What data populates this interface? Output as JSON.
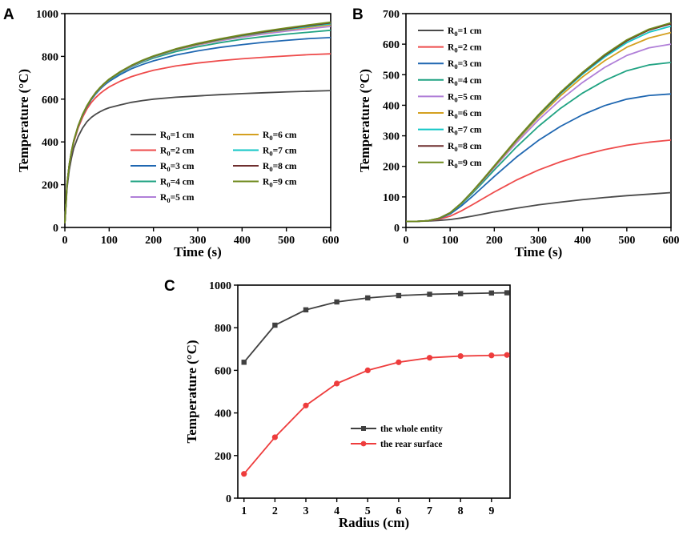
{
  "colors": {
    "R1": "#4a4a4a",
    "R2": "#ee4b4b",
    "R3": "#1f67b1",
    "R4": "#21a383",
    "R5": "#b07fd8",
    "R6": "#d4a020",
    "R7": "#12c6c6",
    "R8": "#6e2e2e",
    "R9": "#6f8a1d",
    "whole": "#404040",
    "rear": "#ee3c3c"
  },
  "chart_data": [
    {
      "panel": "A",
      "type": "line",
      "xlabel": "Time (s)",
      "ylabel": "Temperature (°C)",
      "xlim": [
        0,
        600
      ],
      "ylim": [
        0,
        1000
      ],
      "xticks": [
        0,
        100,
        200,
        300,
        400,
        500,
        600
      ],
      "yticks": [
        0,
        200,
        400,
        600,
        800,
        1000
      ],
      "legend": {
        "placement": "center-right",
        "columns": 2
      },
      "x": [
        0,
        5,
        10,
        15,
        20,
        30,
        40,
        50,
        60,
        70,
        80,
        90,
        100,
        125,
        150,
        175,
        200,
        250,
        300,
        350,
        400,
        450,
        500,
        550,
        600
      ],
      "series": [
        {
          "name": "R0=1 cm",
          "sub_label": "0",
          "prefix": "R",
          "suffix": "=1 cm",
          "color_key": "R1",
          "values": [
            20,
            185,
            270,
            325,
            370,
            425,
            465,
            495,
            515,
            530,
            542,
            552,
            560,
            573,
            585,
            593,
            600,
            609,
            615,
            621,
            626,
            630,
            634,
            637,
            640
          ]
        },
        {
          "name": "R0=2 cm",
          "sub_label": "0",
          "prefix": "R",
          "suffix": "=2 cm",
          "color_key": "R2",
          "values": [
            20,
            200,
            290,
            350,
            398,
            465,
            515,
            555,
            585,
            608,
            627,
            643,
            657,
            684,
            705,
            721,
            735,
            755,
            769,
            780,
            789,
            796,
            802,
            808,
            812
          ]
        },
        {
          "name": "R0=3 cm",
          "sub_label": "0",
          "prefix": "R",
          "suffix": "=3 cm",
          "color_key": "R3",
          "values": [
            20,
            202,
            293,
            354,
            403,
            472,
            524,
            565,
            598,
            625,
            648,
            667,
            683,
            715,
            742,
            762,
            779,
            806,
            826,
            842,
            855,
            866,
            875,
            883,
            888
          ]
        },
        {
          "name": "R0=4 cm",
          "sub_label": "0",
          "prefix": "R",
          "suffix": "=4 cm",
          "color_key": "R4",
          "values": [
            20,
            203,
            294,
            355,
            404,
            473,
            526,
            567,
            601,
            629,
            652,
            672,
            689,
            723,
            751,
            773,
            792,
            822,
            845,
            864,
            880,
            893,
            904,
            913,
            922
          ]
        },
        {
          "name": "R0=5 cm",
          "sub_label": "0",
          "prefix": "R",
          "suffix": "=5 cm",
          "color_key": "R5",
          "values": [
            20,
            203,
            294,
            356,
            405,
            474,
            527,
            568,
            602,
            630,
            653,
            673,
            691,
            726,
            754,
            777,
            797,
            829,
            853,
            873,
            890,
            905,
            918,
            929,
            940
          ]
        },
        {
          "name": "R0=6 cm",
          "sub_label": "0",
          "prefix": "R",
          "suffix": "=6 cm",
          "color_key": "R6",
          "values": [
            20,
            203,
            295,
            356,
            405,
            474,
            527,
            569,
            603,
            631,
            654,
            674,
            692,
            727,
            756,
            779,
            799,
            831,
            856,
            877,
            895,
            911,
            924,
            936,
            948
          ]
        },
        {
          "name": "R0=7 cm",
          "sub_label": "0",
          "prefix": "R",
          "suffix": "=7 cm",
          "color_key": "R7",
          "values": [
            20,
            203,
            295,
            356,
            405,
            475,
            528,
            569,
            603,
            631,
            655,
            675,
            692,
            728,
            757,
            780,
            800,
            833,
            858,
            879,
            897,
            913,
            927,
            940,
            953
          ]
        },
        {
          "name": "R0=8 cm",
          "sub_label": "0",
          "prefix": "R",
          "suffix": "=8 cm",
          "color_key": "R8",
          "values": [
            20,
            203,
            295,
            356,
            405,
            475,
            528,
            569,
            603,
            632,
            655,
            675,
            693,
            728,
            757,
            781,
            801,
            834,
            859,
            880,
            899,
            915,
            930,
            944,
            957
          ]
        },
        {
          "name": "R0=9 cm",
          "sub_label": "0",
          "prefix": "R",
          "suffix": "=9 cm",
          "color_key": "R9",
          "values": [
            20,
            203,
            295,
            356,
            405,
            475,
            528,
            570,
            604,
            632,
            656,
            676,
            694,
            729,
            758,
            782,
            802,
            835,
            861,
            882,
            901,
            918,
            933,
            947,
            960
          ]
        }
      ]
    },
    {
      "panel": "B",
      "type": "line",
      "xlabel": "Time (s)",
      "ylabel": "Temperature (°C)",
      "xlim": [
        0,
        600
      ],
      "ylim": [
        0,
        700
      ],
      "xticks": [
        0,
        100,
        200,
        300,
        400,
        500,
        600
      ],
      "yticks": [
        0,
        100,
        200,
        300,
        400,
        500,
        600,
        700
      ],
      "legend": {
        "placement": "top-left",
        "columns": 1
      },
      "x": [
        0,
        25,
        50,
        75,
        100,
        125,
        150,
        175,
        200,
        250,
        300,
        350,
        400,
        450,
        500,
        550,
        600
      ],
      "series": [
        {
          "name": "R0=1 cm",
          "sub_label": "0",
          "prefix": "R",
          "suffix": "=1 cm",
          "color_key": "R1",
          "values": [
            20,
            20,
            21,
            23,
            26,
            31,
            37,
            44,
            51,
            63,
            74,
            83,
            91,
            98,
            104,
            109,
            114
          ]
        },
        {
          "name": "R0=2 cm",
          "sub_label": "0",
          "prefix": "R",
          "suffix": "=2 cm",
          "color_key": "R2",
          "values": [
            20,
            20,
            22,
            27,
            37,
            54,
            74,
            95,
            116,
            155,
            188,
            215,
            237,
            255,
            269,
            279,
            286
          ]
        },
        {
          "name": "R0=3 cm",
          "sub_label": "0",
          "prefix": "R",
          "suffix": "=3 cm",
          "color_key": "R3",
          "values": [
            20,
            20,
            22,
            29,
            44,
            70,
            101,
            134,
            167,
            230,
            285,
            331,
            369,
            399,
            420,
            432,
            437
          ]
        },
        {
          "name": "R0=4 cm",
          "sub_label": "0",
          "prefix": "R",
          "suffix": "=4 cm",
          "color_key": "R4",
          "values": [
            20,
            20,
            22,
            30,
            47,
            76,
            111,
            149,
            188,
            263,
            331,
            390,
            440,
            481,
            513,
            532,
            540
          ]
        },
        {
          "name": "R0=5 cm",
          "sub_label": "0",
          "prefix": "R",
          "suffix": "=5 cm",
          "color_key": "R5",
          "values": [
            20,
            20,
            22,
            30,
            48,
            78,
            115,
            155,
            196,
            277,
            352,
            418,
            475,
            524,
            563,
            588,
            600
          ]
        },
        {
          "name": "R0=6 cm",
          "sub_label": "0",
          "prefix": "R",
          "suffix": "=6 cm",
          "color_key": "R6",
          "values": [
            20,
            20,
            22,
            30,
            48,
            79,
            116,
            157,
            199,
            283,
            361,
            431,
            493,
            546,
            590,
            620,
            638
          ]
        },
        {
          "name": "R0=7 cm",
          "sub_label": "0",
          "prefix": "R",
          "suffix": "=7 cm",
          "color_key": "R7",
          "values": [
            20,
            20,
            22,
            30,
            48,
            79,
            117,
            158,
            201,
            286,
            366,
            438,
            502,
            558,
            605,
            639,
            659
          ]
        },
        {
          "name": "R0=8 cm",
          "sub_label": "0",
          "prefix": "R",
          "suffix": "=8 cm",
          "color_key": "R8",
          "values": [
            20,
            20,
            22,
            30,
            48,
            79,
            117,
            158,
            201,
            287,
            368,
            441,
            506,
            563,
            611,
            646,
            667
          ]
        },
        {
          "name": "R0=9 cm",
          "sub_label": "0",
          "prefix": "R",
          "suffix": "=9 cm",
          "color_key": "R9",
          "values": [
            20,
            20,
            22,
            30,
            48,
            79,
            117,
            159,
            202,
            288,
            369,
            443,
            508,
            566,
            614,
            649,
            670
          ]
        }
      ]
    },
    {
      "panel": "C",
      "type": "line",
      "xlabel": "Radius (cm)",
      "ylabel": "Temperature (°C)",
      "xlim": [
        0.8,
        9.6
      ],
      "ylim": [
        0,
        1000
      ],
      "xticks": [
        1,
        2,
        3,
        4,
        5,
        6,
        7,
        8,
        9
      ],
      "yticks": [
        0,
        200,
        400,
        600,
        800,
        1000
      ],
      "legend": {
        "placement": "bottom-right",
        "columns": 1
      },
      "x": [
        1,
        2,
        3,
        4,
        5,
        6,
        7,
        8,
        9,
        9.5
      ],
      "series": [
        {
          "name": "the whole entity",
          "marker": "square",
          "color_key": "whole",
          "values": [
            638,
            812,
            884,
            921,
            940,
            951,
            957,
            960,
            963,
            964
          ]
        },
        {
          "name": "the rear surface",
          "marker": "circle",
          "color_key": "rear",
          "values": [
            114,
            286,
            435,
            538,
            600,
            638,
            659,
            667,
            670,
            672
          ]
        }
      ]
    }
  ]
}
